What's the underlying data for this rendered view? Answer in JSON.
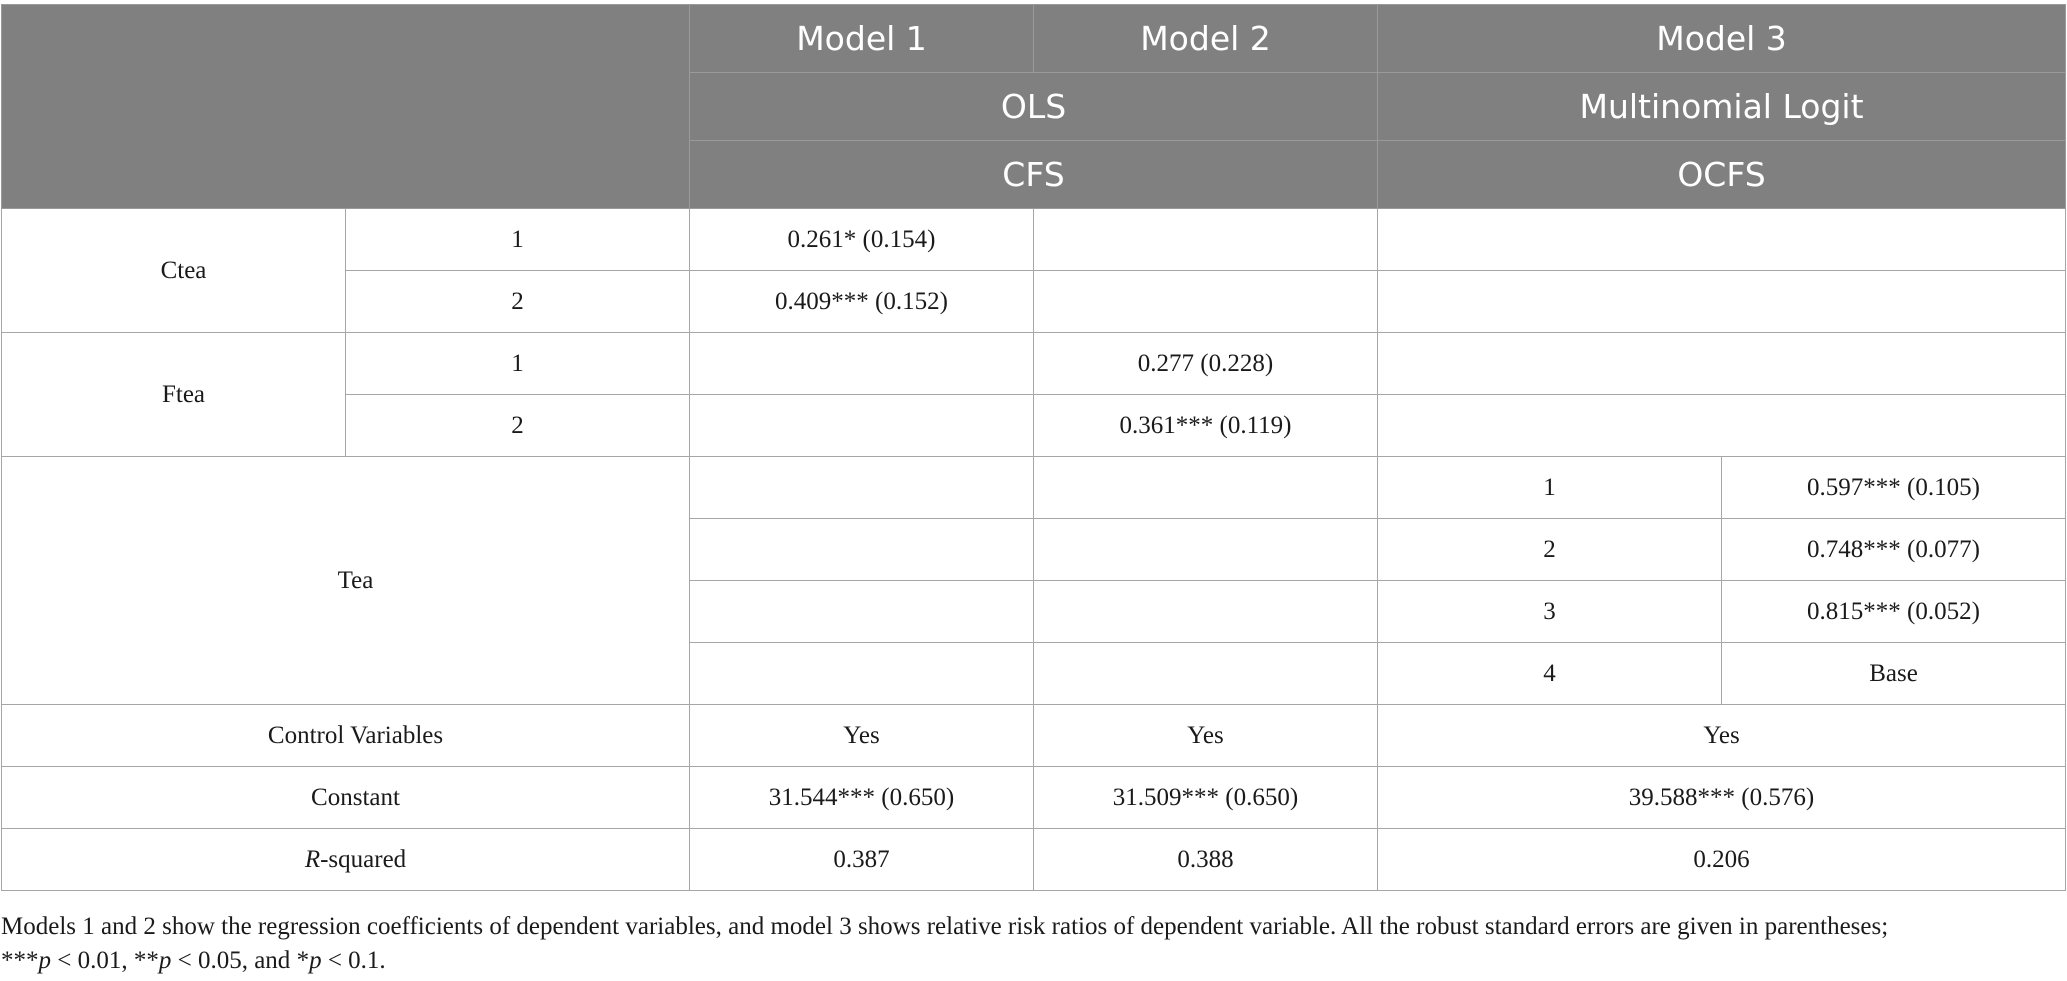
{
  "header": {
    "model1": "Model 1",
    "model2": "Model 2",
    "model3": "Model 3",
    "method_ols": "OLS",
    "method_mnl": "Multinomial Logit",
    "dv_cfs": "CFS",
    "dv_ocfs": "OCFS"
  },
  "rows": {
    "ctea": {
      "label": "Ctea",
      "cat1": "1",
      "cat2": "2",
      "m1_c1": "0.261* (0.154)",
      "m1_c2": "0.409*** (0.152)"
    },
    "ftea": {
      "label": "Ftea",
      "cat1": "1",
      "cat2": "2",
      "m2_c1": "0.277 (0.228)",
      "m2_c2": "0.361*** (0.119)"
    },
    "tea": {
      "label": "Tea",
      "cat1": "1",
      "cat2": "2",
      "cat3": "3",
      "cat4": "4",
      "m3_c1": "0.597*** (0.105)",
      "m3_c2": "0.748*** (0.077)",
      "m3_c3": "0.815*** (0.052)",
      "m3_c4": "Base"
    },
    "control": {
      "label": "Control Variables",
      "m1": "Yes",
      "m2": "Yes",
      "m3": "Yes"
    },
    "constant": {
      "label": "Constant",
      "m1": "31.544*** (0.650)",
      "m2": "31.509*** (0.650)",
      "m3": "39.588*** (0.576)"
    },
    "rsq": {
      "label_italic": "R",
      "label_rest": "-squared",
      "m1": "0.387",
      "m2": "0.388",
      "m3": "0.206"
    }
  },
  "note": {
    "text": "Models 1 and 2 show the regression coefficients of dependent variables, and model 3 shows relative risk ratios of dependent variable. All the robust standard errors are given in parentheses;",
    "sig_1_stars": "***",
    "sig_1_tail": " < 0.01, ",
    "sig_2_stars": "**",
    "sig_2_tail": " < 0.05, and ",
    "sig_3_stars": "*",
    "sig_3_tail": " < 0.1.",
    "p": "p"
  }
}
